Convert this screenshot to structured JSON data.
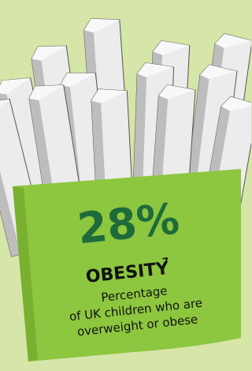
{
  "stat": {
    "value": "28%",
    "title": "OBESITY",
    "footnote": "7",
    "description": [
      "Percentage",
      "of UK children who are",
      "overweight or obese"
    ]
  }
}
